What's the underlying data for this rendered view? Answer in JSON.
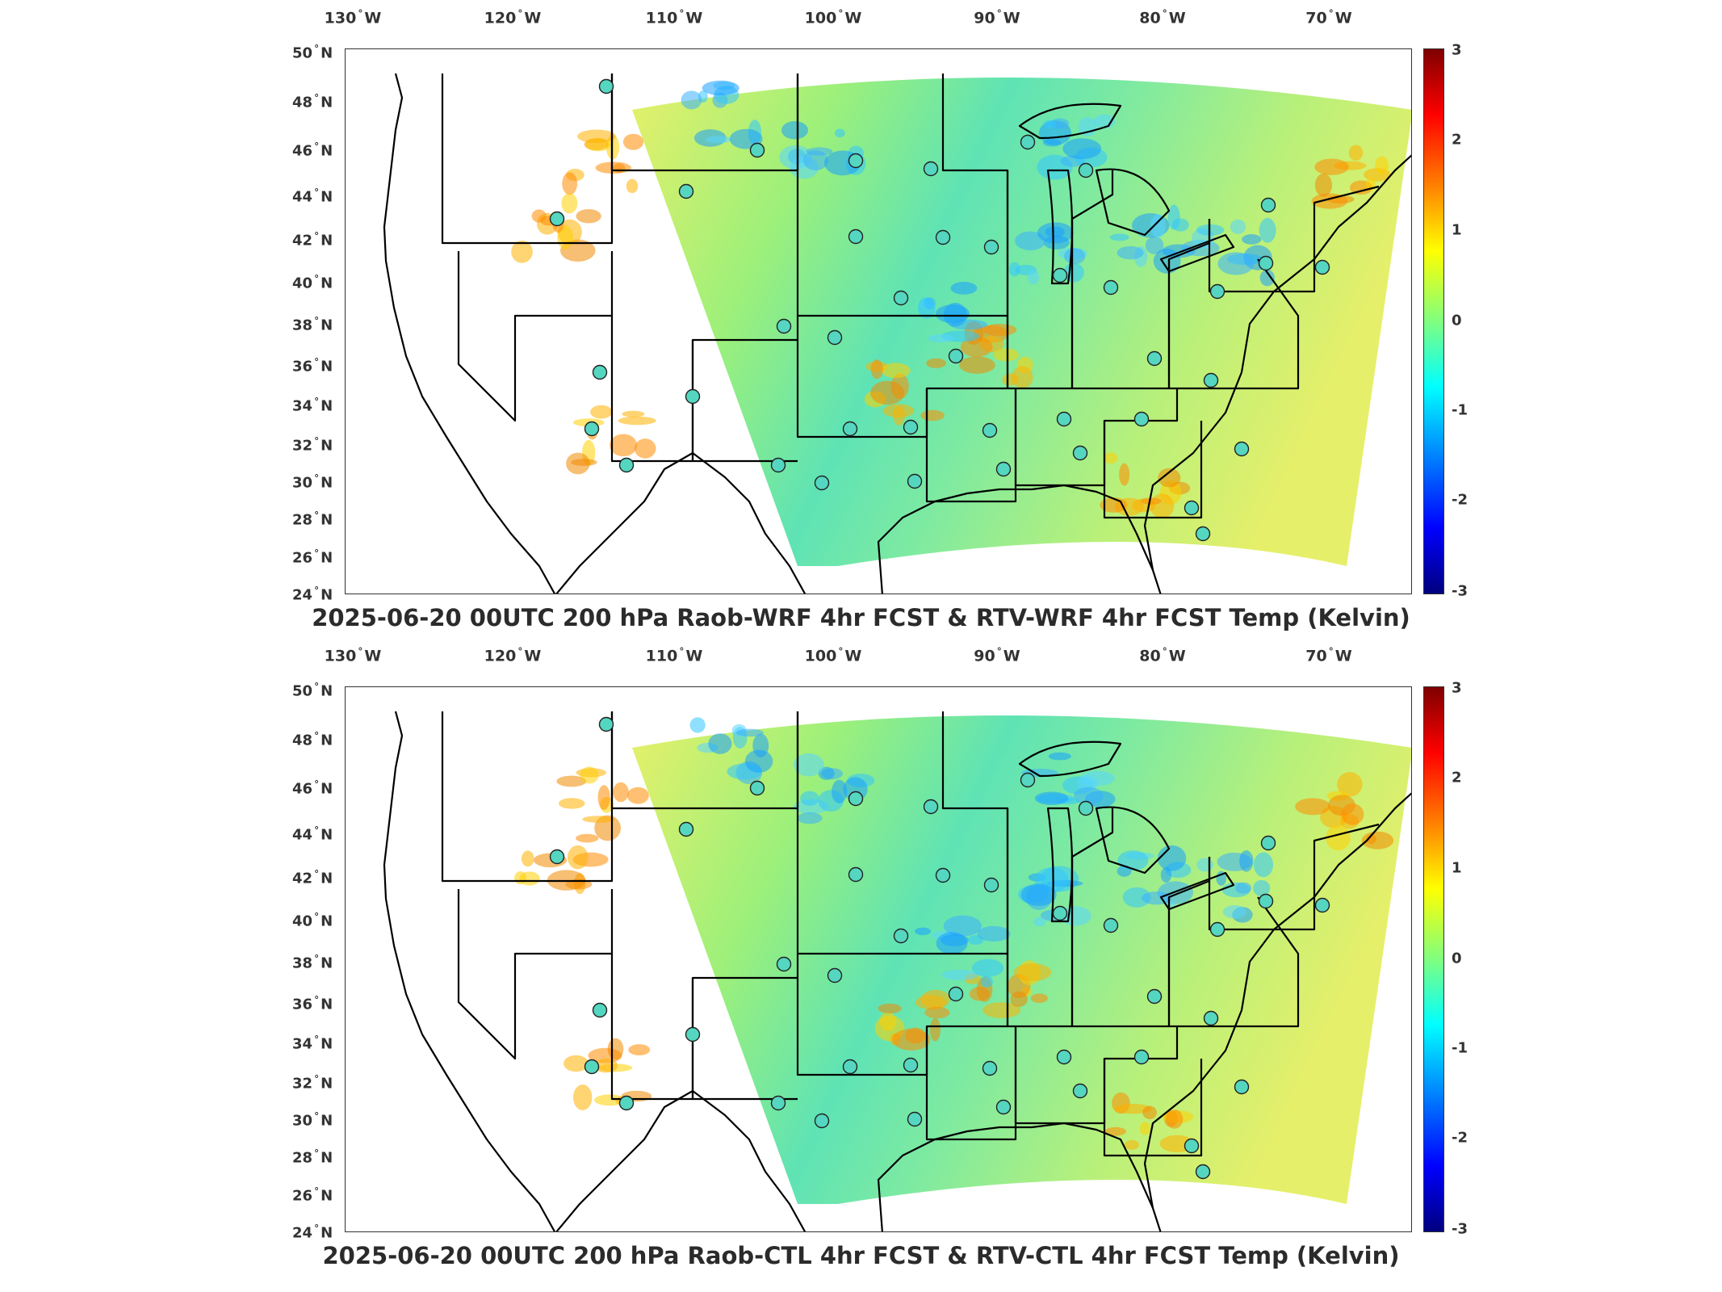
{
  "panels": [
    {
      "id": "top",
      "title": "2025-06-20 00UTC 200 hPa Raob-WRF 4hr FCST & RTV-WRF 4hr FCST Temp (Kelvin)",
      "colorbar_ticks": [
        "3",
        "2",
        "1",
        "0",
        "-1",
        "-2",
        "-3"
      ]
    },
    {
      "id": "bottom",
      "title": "2025-06-20 00UTC 200 hPa Raob-CTL 4hr FCST & RTV-CTL 4hr FCST Temp (Kelvin)",
      "colorbar_ticks": [
        "3",
        "2",
        "1",
        "0",
        "-1",
        "-2",
        "-3"
      ]
    }
  ],
  "lon_labels": [
    "130",
    "120",
    "110",
    "100",
    "90",
    "80",
    "70"
  ],
  "lon_suffix": "W",
  "lat_labels": [
    "50",
    "48",
    "46",
    "44",
    "42",
    "40",
    "38",
    "36",
    "34",
    "32",
    "30",
    "28",
    "26",
    "24"
  ],
  "lat_suffix": "N",
  "degree_symbol": "°",
  "colorbar": {
    "min": -3,
    "max": 3,
    "colormap": "jet"
  },
  "colors": {
    "outline": "#000000",
    "frame": "#333333",
    "text": "#2b2b2b"
  }
}
